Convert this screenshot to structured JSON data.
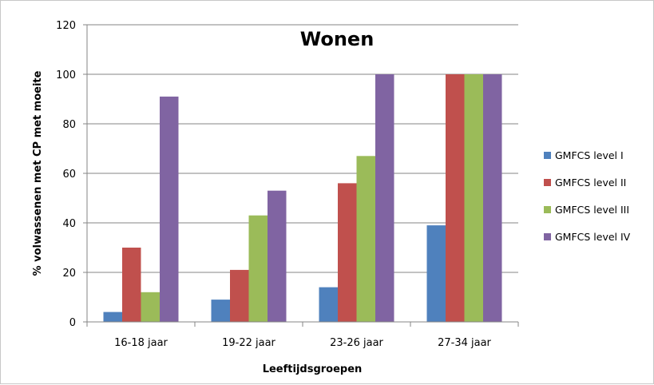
{
  "chart_data": {
    "type": "bar",
    "title": "Wonen",
    "xlabel": "Leeftijdsgroepen",
    "ylabel": "% volwassenen met CP met moeite",
    "categories": [
      "16-18 jaar",
      "19-22 jaar",
      "23-26 jaar",
      "27-34 jaar"
    ],
    "ylim": [
      0,
      120
    ],
    "yticks": [
      0,
      20,
      40,
      60,
      80,
      100,
      120
    ],
    "grid": true,
    "legend_position": "right",
    "series": [
      {
        "name": "GMFCS level I",
        "color": "#4f81bd",
        "values": [
          4,
          9,
          14,
          39
        ]
      },
      {
        "name": "GMFCS level II",
        "color": "#c0504d",
        "values": [
          30,
          21,
          56,
          100
        ]
      },
      {
        "name": "GMFCS level III",
        "color": "#9bbb59",
        "values": [
          12,
          43,
          67,
          100
        ]
      },
      {
        "name": "GMFCS level IV",
        "color": "#8064a2",
        "values": [
          91,
          53,
          100,
          100
        ]
      }
    ]
  }
}
